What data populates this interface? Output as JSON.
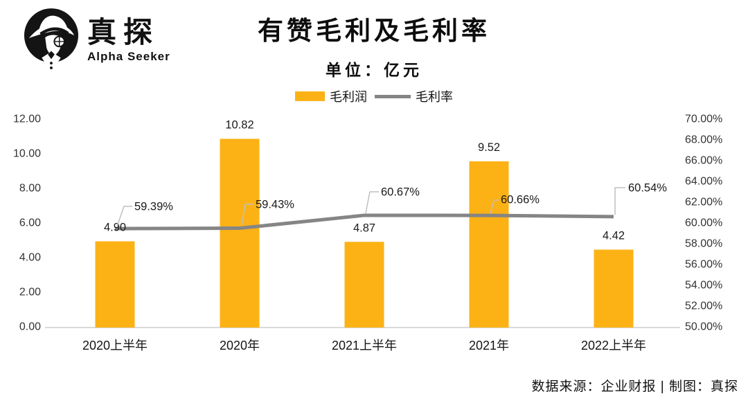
{
  "logo": {
    "brand_zh": "真探",
    "brand_en": "Alpha Seeker",
    "icon": "detective-with-hat-and-monocle"
  },
  "header": {
    "title": "有赞毛利及毛利率",
    "subtitle": "单位：亿元"
  },
  "legend": [
    {
      "label": "毛利润",
      "type": "bar",
      "color": "#FCB215"
    },
    {
      "label": "毛利率",
      "type": "line",
      "color": "#858585"
    }
  ],
  "footer": {
    "source": "数据来源：企业财报 | 制图：真探"
  },
  "chart_data": {
    "type": "bar+line",
    "title": "有赞毛利及毛利率",
    "unit": "亿元",
    "grid": false,
    "legend_position": "top",
    "categories": [
      "2020上半年",
      "2020年",
      "2021上半年",
      "2021年",
      "2022上半年"
    ],
    "series": [
      {
        "name": "毛利润",
        "type": "bar",
        "axis": "left",
        "values": [
          4.9,
          10.82,
          4.87,
          9.52,
          4.42
        ],
        "labels": [
          "4.90",
          "10.82",
          "4.87",
          "9.52",
          "4.42"
        ],
        "color": "#FCB215"
      },
      {
        "name": "毛利率",
        "type": "line",
        "axis": "right",
        "values": [
          59.39,
          59.43,
          60.67,
          60.66,
          60.54
        ],
        "labels": [
          "59.39%",
          "59.43%",
          "60.67%",
          "60.66%",
          "60.54%"
        ],
        "color": "#858585"
      }
    ],
    "left_axis": {
      "min": 0,
      "max": 12,
      "step": 2,
      "tick_labels": [
        "0.00",
        "2.00",
        "4.00",
        "6.00",
        "8.00",
        "10.00",
        "12.00"
      ]
    },
    "right_axis": {
      "min": 50,
      "max": 70,
      "step": 2,
      "tick_labels": [
        "50.00%",
        "52.00%",
        "54.00%",
        "56.00%",
        "58.00%",
        "60.00%",
        "62.00%",
        "64.00%",
        "66.00%",
        "68.00%",
        "70.00%"
      ]
    },
    "colors": {
      "axis": "#D9D9D9",
      "leader": "#BFBFBF"
    }
  }
}
